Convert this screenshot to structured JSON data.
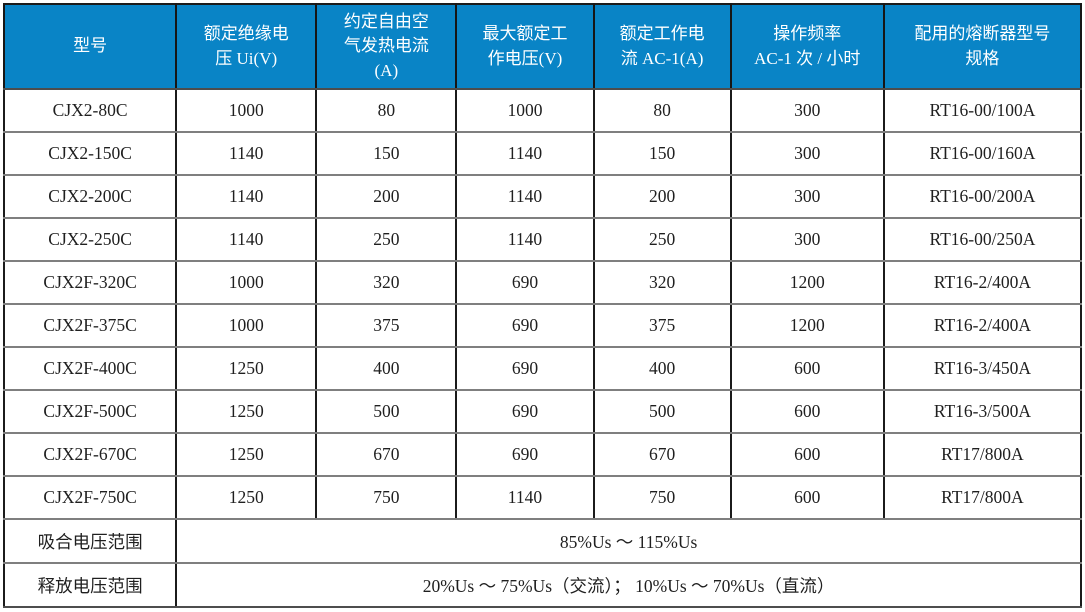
{
  "colors": {
    "header_bg": "#0984c6",
    "header_text": "#ffffff",
    "body_text": "#1f1f1f",
    "vertical_border": "#1b1b1b",
    "horizontal_border": "#7f7f7f"
  },
  "header": {
    "columns": [
      "型号",
      "额定绝缘电\n压 Ui(V)",
      "约定自由空\n气发热电流\n(A)",
      "最大额定工\n作电压(V)",
      "额定工作电\n流 AC-1(A)",
      "操作频率\nAC-1 次 / 小时",
      "配用的熔断器型号\n规格"
    ]
  },
  "rows": [
    [
      "CJX2-80C",
      "1000",
      "80",
      "1000",
      "80",
      "300",
      "RT16-00/100A"
    ],
    [
      "CJX2-150C",
      "1140",
      "150",
      "1140",
      "150",
      "300",
      "RT16-00/160A"
    ],
    [
      "CJX2-200C",
      "1140",
      "200",
      "1140",
      "200",
      "300",
      "RT16-00/200A"
    ],
    [
      "CJX2-250C",
      "1140",
      "250",
      "1140",
      "250",
      "300",
      "RT16-00/250A"
    ],
    [
      "CJX2F-320C",
      "1000",
      "320",
      "690",
      "320",
      "1200",
      "RT16-2/400A"
    ],
    [
      "CJX2F-375C",
      "1000",
      "375",
      "690",
      "375",
      "1200",
      "RT16-2/400A"
    ],
    [
      "CJX2F-400C",
      "1250",
      "400",
      "690",
      "400",
      "600",
      "RT16-3/450A"
    ],
    [
      "CJX2F-500C",
      "1250",
      "500",
      "690",
      "500",
      "600",
      "RT16-3/500A"
    ],
    [
      "CJX2F-670C",
      "1250",
      "670",
      "690",
      "670",
      "600",
      "RT17/800A"
    ],
    [
      "CJX2F-750C",
      "1250",
      "750",
      "1140",
      "750",
      "600",
      "RT17/800A"
    ]
  ],
  "footer": [
    {
      "label": "吸合电压范围",
      "value": "85%Us ～ 115%Us"
    },
    {
      "label": "释放电压范围",
      "value": "20%Us ～ 75%Us（交流）； 10%Us ～ 70%Us（直流）"
    }
  ]
}
